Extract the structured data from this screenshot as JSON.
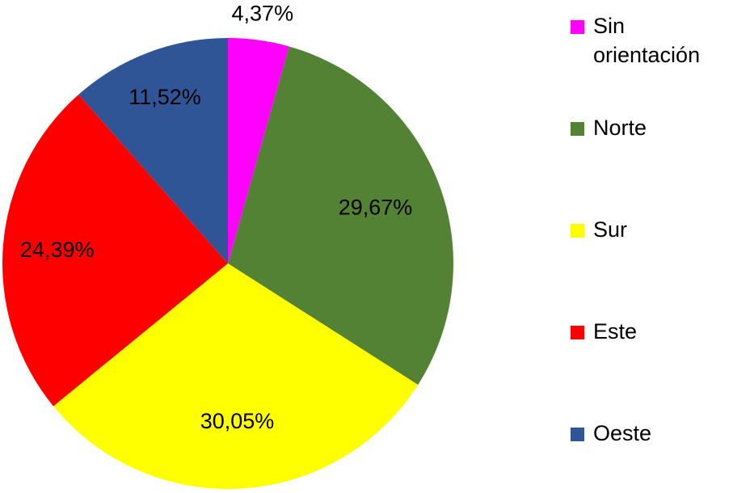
{
  "chart_data": {
    "type": "pie",
    "title": "",
    "legend_position": "right",
    "start_angle_deg": 0,
    "direction": "clockwise",
    "categories": [
      "Sin orientación",
      "Norte",
      "Sur",
      "Este",
      "Oeste"
    ],
    "values": [
      4.37,
      29.67,
      30.05,
      24.39,
      11.52
    ],
    "data_labels": [
      "4,37%",
      "29,67%",
      "30,05%",
      "24,39%",
      "11,52%"
    ],
    "colors": [
      "#ff00ff",
      "#548235",
      "#ffff00",
      "#ff0000",
      "#2f5597"
    ]
  },
  "legend": {
    "items": [
      {
        "label": "Sin orientación",
        "color": "#ff00ff"
      },
      {
        "label": "Norte",
        "color": "#548235"
      },
      {
        "label": "Sur",
        "color": "#ffff00"
      },
      {
        "label": "Este",
        "color": "#ff0000"
      },
      {
        "label": "Oeste",
        "color": "#2f5597"
      }
    ]
  }
}
